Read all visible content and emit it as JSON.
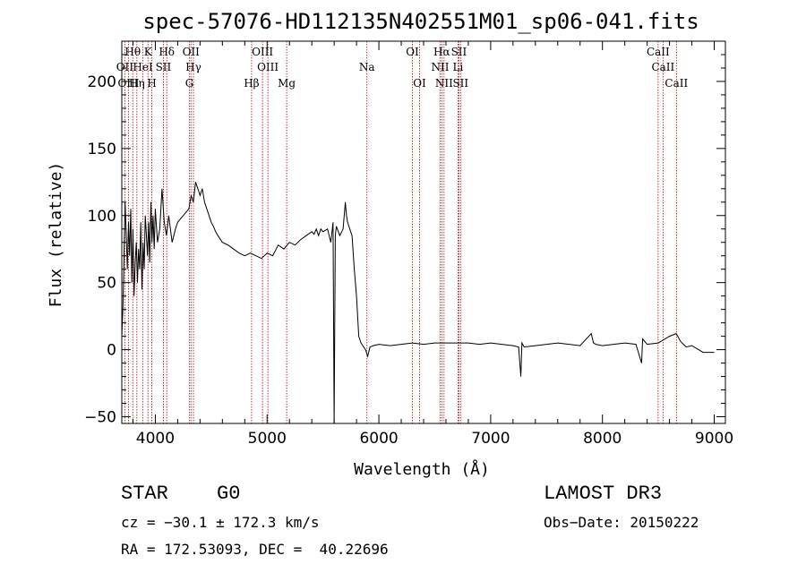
{
  "chart_data": {
    "type": "line",
    "title": "spec-57076-HD112135N402551M01_sp06-041.fits",
    "xlabel": "Wavelength (Å)",
    "ylabel": "Flux (relative)",
    "xlim": [
      3700,
      9100
    ],
    "ylim": [
      -55,
      230
    ],
    "xticks": [
      4000,
      5000,
      6000,
      7000,
      8000,
      9000
    ],
    "yticks": [
      -50,
      0,
      50,
      100,
      150,
      200
    ],
    "xtick_labels": [
      "4000",
      "5000",
      "6000",
      "7000",
      "8000",
      "9000"
    ],
    "ytick_labels": [
      "−50",
      "0",
      "50",
      "100",
      "150",
      "200"
    ],
    "series": [
      {
        "name": "spectrum",
        "x": [
          3700,
          3710,
          3720,
          3730,
          3740,
          3750,
          3760,
          3770,
          3780,
          3790,
          3800,
          3810,
          3820,
          3830,
          3840,
          3850,
          3860,
          3870,
          3880,
          3890,
          3900,
          3910,
          3920,
          3930,
          3940,
          3950,
          3960,
          3970,
          3980,
          3990,
          4000,
          4020,
          4040,
          4060,
          4080,
          4100,
          4120,
          4150,
          4180,
          4200,
          4250,
          4300,
          4320,
          4340,
          4360,
          4380,
          4400,
          4420,
          4440,
          4460,
          4480,
          4500,
          4520,
          4540,
          4560,
          4600,
          4650,
          4700,
          4750,
          4800,
          4850,
          4900,
          4950,
          5000,
          5050,
          5100,
          5150,
          5200,
          5250,
          5300,
          5350,
          5400,
          5420,
          5440,
          5460,
          5480,
          5500,
          5540,
          5570,
          5590,
          5600,
          5610,
          5620,
          5650,
          5680,
          5700,
          5710,
          5720,
          5740,
          5760,
          5780,
          5800,
          5820,
          5840,
          5880,
          5900,
          5920,
          5950,
          6000,
          6100,
          6200,
          6300,
          6400,
          6500,
          6600,
          6700,
          6800,
          6900,
          7000,
          7100,
          7200,
          7250,
          7270,
          7280,
          7300,
          7400,
          7500,
          7600,
          7700,
          7800,
          7900,
          7920,
          7940,
          8000,
          8100,
          8200,
          8300,
          8350,
          8360,
          8400,
          8500,
          8600,
          8660,
          8700,
          8750,
          8800,
          8900,
          9000
        ],
        "values": [
          10,
          30,
          70,
          110,
          85,
          60,
          95,
          70,
          105,
          50,
          90,
          40,
          65,
          80,
          50,
          75,
          60,
          95,
          45,
          80,
          60,
          100,
          85,
          70,
          95,
          65,
          110,
          80,
          100,
          75,
          105,
          80,
          90,
          120,
          95,
          85,
          100,
          80,
          90,
          95,
          100,
          105,
          115,
          110,
          125,
          120,
          115,
          120,
          110,
          105,
          100,
          95,
          92,
          88,
          85,
          80,
          78,
          75,
          72,
          70,
          72,
          70,
          68,
          72,
          70,
          78,
          75,
          80,
          78,
          82,
          85,
          88,
          86,
          90,
          85,
          90,
          88,
          90,
          80,
          95,
          -55,
          85,
          92,
          85,
          90,
          110,
          100,
          95,
          90,
          85,
          60,
          40,
          10,
          5,
          0,
          -5,
          2,
          3,
          4,
          3,
          4,
          5,
          4,
          5,
          5,
          5,
          5,
          4,
          5,
          4,
          3,
          2,
          -20,
          5,
          2,
          3,
          4,
          5,
          4,
          3,
          12,
          5,
          4,
          3,
          4,
          5,
          4,
          -10,
          8,
          4,
          5,
          10,
          12,
          6,
          2,
          3,
          -2,
          -2
        ]
      }
    ],
    "spectral_lines": {
      "row1": [
        {
          "label": "Hθ",
          "x": 3798
        },
        {
          "label": "K",
          "x": 3934
        },
        {
          "label": "Hδ",
          "x": 4102
        },
        {
          "label": "OII",
          "x": 4319
        },
        {
          "label": "OIII",
          "x": 4959
        },
        {
          "label": "OI",
          "x": 6300
        },
        {
          "label": "Hα",
          "x": 6563
        },
        {
          "label": "SII",
          "x": 6716
        },
        {
          "label": "CaII",
          "x": 8498
        }
      ],
      "row2": [
        {
          "label": "OII",
          "x": 3727
        },
        {
          "label": "HeI",
          "x": 3889
        },
        {
          "label": "SII",
          "x": 4072
        },
        {
          "label": "Hγ",
          "x": 4341
        },
        {
          "label": "OIII",
          "x": 5007
        },
        {
          "label": "Na",
          "x": 5893
        },
        {
          "label": "NII",
          "x": 6548
        },
        {
          "label": "Li",
          "x": 6708
        },
        {
          "label": "CaII",
          "x": 8542
        }
      ],
      "row3": [
        {
          "label": "OIII",
          "x": 3760
        },
        {
          "label": "Hη",
          "x": 3835
        },
        {
          "label": "H",
          "x": 3969
        },
        {
          "label": "G",
          "x": 4305
        },
        {
          "label": "Hβ",
          "x": 4861
        },
        {
          "label": "Mg",
          "x": 5175
        },
        {
          "label": "OI",
          "x": 6364
        },
        {
          "label": "NII",
          "x": 6583
        },
        {
          "label": "SII",
          "x": 6731
        },
        {
          "label": "CaII",
          "x": 8662
        }
      ]
    }
  },
  "info": {
    "object_class": "STAR",
    "subclass": "G0",
    "survey": "LAMOST DR3",
    "cz": "cz = −30.1 ± 172.3 km/s",
    "obs_date": "Obs−Date: 20150222",
    "coords": "RA = 172.53093, DEC =  40.22696"
  }
}
